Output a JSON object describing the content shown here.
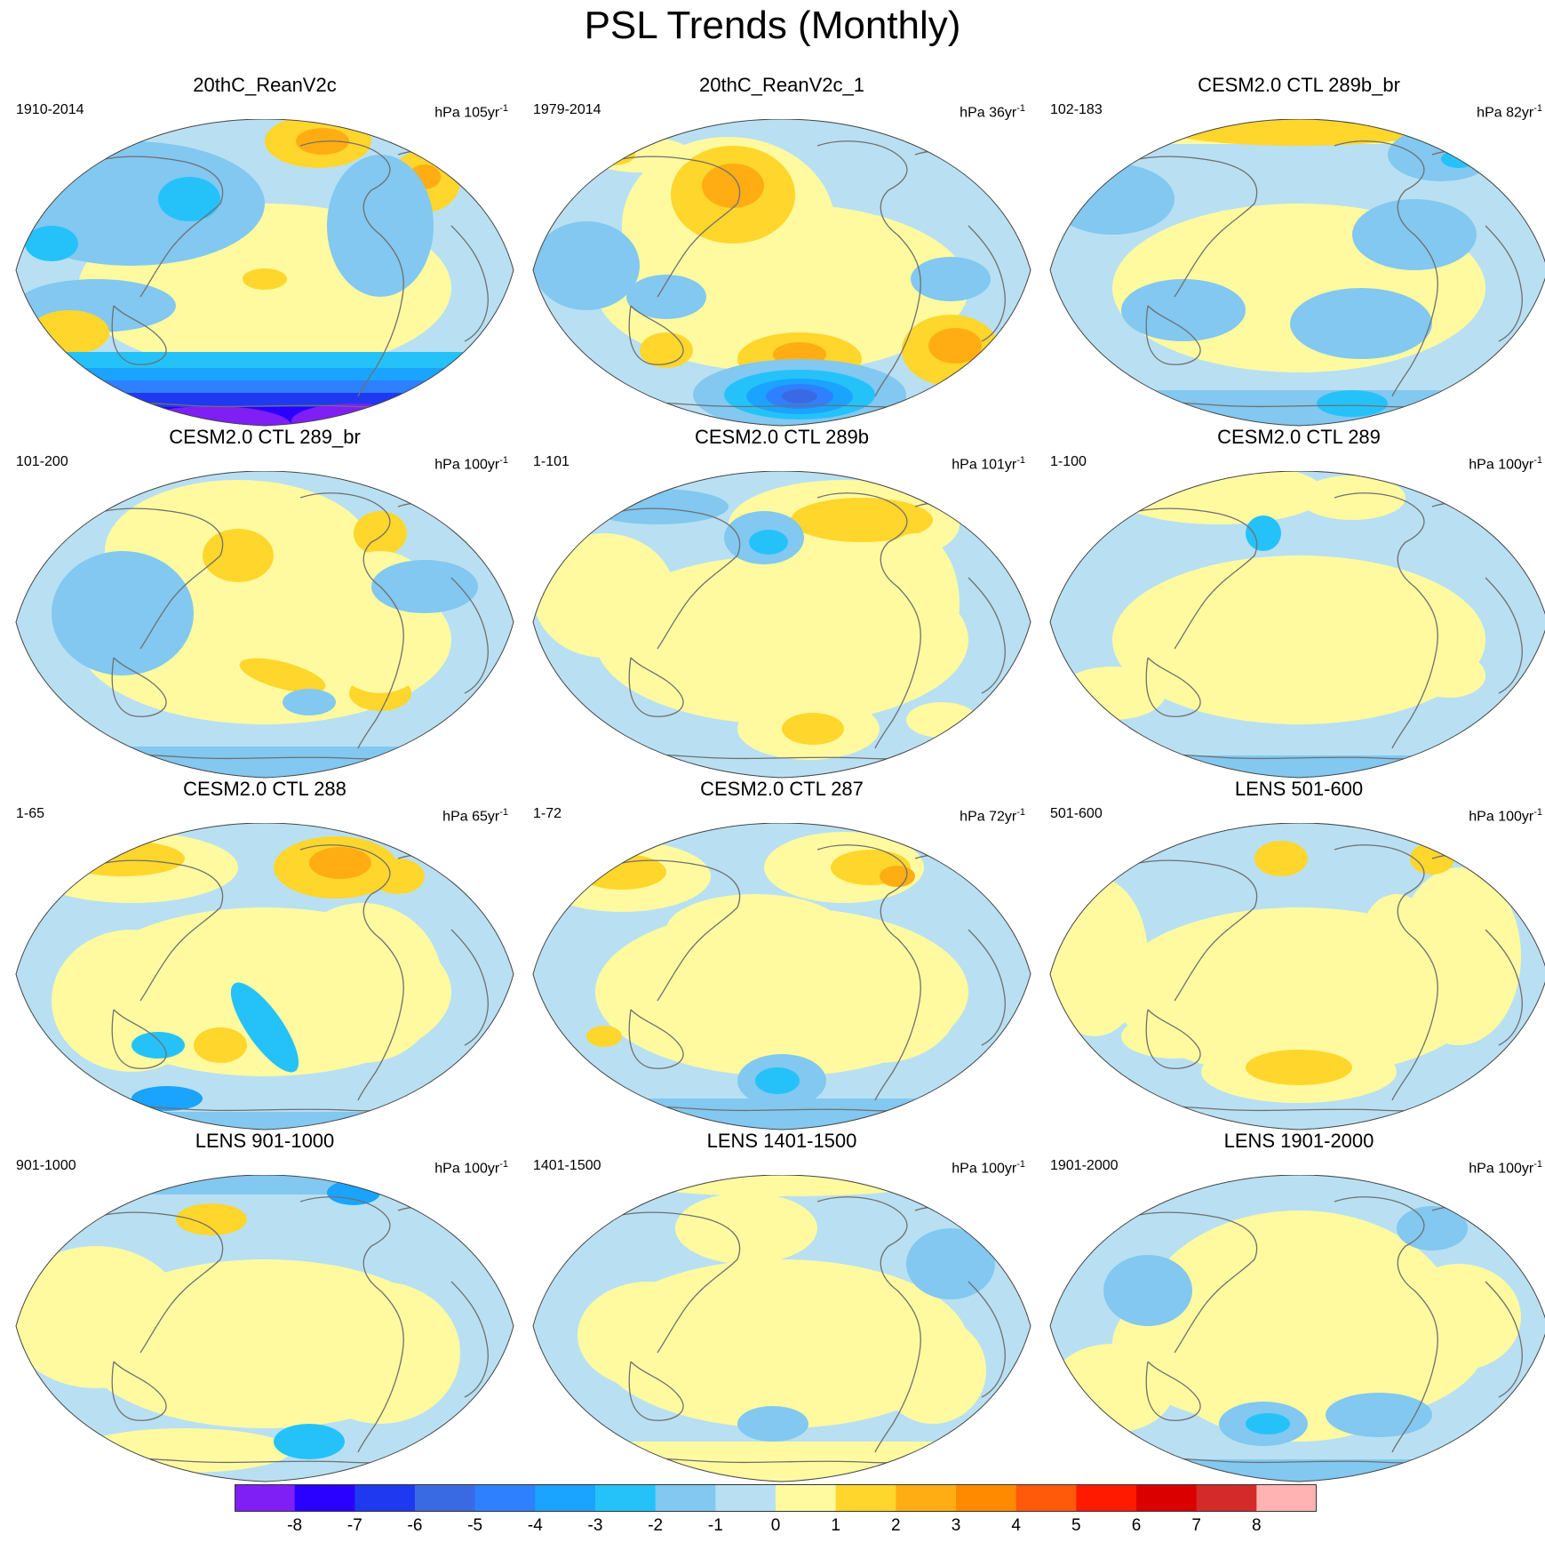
{
  "title": "PSL Trends (Monthly)",
  "panels": [
    {
      "title": "20thC_ReanV2c",
      "period": "1910-2014",
      "units": "hPa 105yr",
      "units_exp": "-1",
      "pattern": "rean"
    },
    {
      "title": "20thC_ReanV2c_1",
      "period": "1979-2014",
      "units": "hPa 36yr",
      "units_exp": "-1",
      "pattern": "rean1"
    },
    {
      "title": "CESM2.0 CTL 289b_br",
      "period": "102-183",
      "units": "hPa 82yr",
      "units_exp": "-1",
      "pattern": "a"
    },
    {
      "title": "CESM2.0 CTL 289_br",
      "period": "101-200",
      "units": "hPa 100yr",
      "units_exp": "-1",
      "pattern": "b"
    },
    {
      "title": "CESM2.0 CTL 289b",
      "period": "1-101",
      "units": "hPa 101yr",
      "units_exp": "-1",
      "pattern": "c"
    },
    {
      "title": "CESM2.0 CTL 289",
      "period": "1-100",
      "units": "hPa 100yr",
      "units_exp": "-1",
      "pattern": "d"
    },
    {
      "title": "CESM2.0 CTL 288",
      "period": "1-65",
      "units": "hPa 65yr",
      "units_exp": "-1",
      "pattern": "e"
    },
    {
      "title": "CESM2.0 CTL 287",
      "period": "1-72",
      "units": "hPa 72yr",
      "units_exp": "-1",
      "pattern": "f"
    },
    {
      "title": "LENS 501-600",
      "period": "501-600",
      "units": "hPa 100yr",
      "units_exp": "-1",
      "pattern": "g"
    },
    {
      "title": "LENS 901-1000",
      "period": "901-1000",
      "units": "hPa 100yr",
      "units_exp": "-1",
      "pattern": "h"
    },
    {
      "title": "LENS 1401-1500",
      "period": "1401-1500",
      "units": "hPa 100yr",
      "units_exp": "-1",
      "pattern": "i"
    },
    {
      "title": "LENS 1901-2000",
      "period": "1901-2000",
      "units": "hPa 100yr",
      "units_exp": "-1",
      "pattern": "j"
    }
  ],
  "colorbar": {
    "colors": [
      "#7f1ff5",
      "#2a00ff",
      "#1f39f0",
      "#3a6ae3",
      "#2e80ff",
      "#1aa3ff",
      "#25c2fa",
      "#82c8f0",
      "#b8e0f2",
      "#fffaa0",
      "#ffd62b",
      "#ffad13",
      "#ff8a00",
      "#ff5a0a",
      "#ff1a00",
      "#db0000",
      "#d52a2a",
      "#ffb3b3"
    ],
    "labels": [
      "-8",
      "-7",
      "-6",
      "-5",
      "-4",
      "-3",
      "-2",
      "-1",
      "0",
      "1",
      "2",
      "3",
      "4",
      "5",
      "6",
      "7",
      "8"
    ]
  },
  "colors": {
    "neg1": "#b8e0f2",
    "pos1": "#fffaa0",
    "coast": "#707070"
  }
}
